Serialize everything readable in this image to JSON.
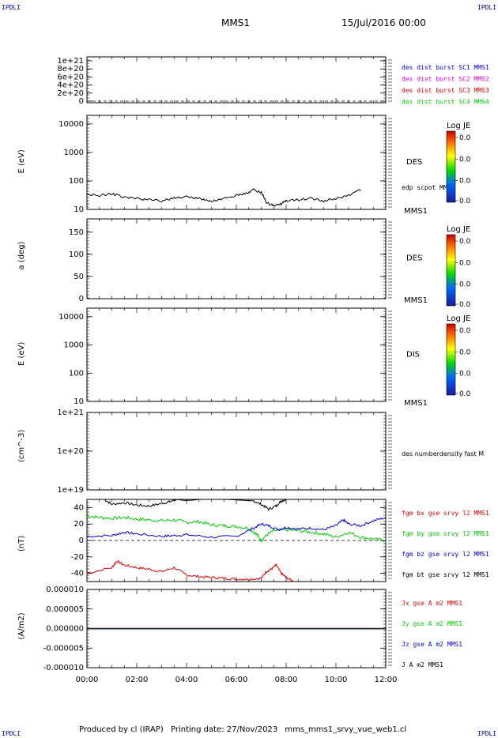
{
  "header": {
    "corner_tl": "IPDLI",
    "corner_tr": "IPDLI",
    "corner_bl": "IPDLI",
    "corner_br": "IPDLI",
    "title": "MMS1",
    "date": "15/Jul/2016 00:00"
  },
  "footer": {
    "produced_by": "Produced by cl (IRAP)",
    "printing_date": "Printing date: 27/Nov/2023",
    "filename": "mms_mms1_srvy_vue_web1.cl"
  },
  "colors": {
    "red": "#dd0000",
    "green": "#00cc00",
    "blue": "#0000dd",
    "magenta": "#dd00dd",
    "black": "#000000"
  },
  "chart_data": [
    {
      "type": "line",
      "panel": "burst",
      "ylabel": "",
      "ylim": [
        0,
        1e+21
      ],
      "yticks": [
        "1e+21",
        "8e+20",
        "6e+20",
        "4e+20",
        "2e+20",
        "0"
      ],
      "legend": [
        {
          "text": "des dist burst SC1 MMS1",
          "color": "#0000dd"
        },
        {
          "text": "des dist burst SC2 MMS2",
          "color": "#dd00dd"
        },
        {
          "text": "des dist burst SC3 MMS3",
          "color": "#dd0000"
        },
        {
          "text": "des dist burst SC4 MMS4",
          "color": "#00cc00"
        }
      ],
      "zero_line": true
    },
    {
      "type": "heatmap",
      "panel": "des-energy",
      "ylabel": "E (eV)",
      "yscale": "log",
      "ylim": [
        10,
        20000
      ],
      "yticks": [
        "10000",
        "1000",
        "100",
        "10"
      ],
      "right_label": "DES",
      "overlay_label": "edp scpot MMS1",
      "sc_label": "MMS1",
      "colorbar": {
        "title": "Log JE",
        "ticks": [
          "0.0",
          "0.0",
          "0.0",
          "0.0"
        ]
      },
      "overlay_series": {
        "name": "edp scpot MMS1",
        "x_hours": [
          0,
          0.5,
          1,
          1.5,
          2,
          2.5,
          3,
          3.5,
          4,
          4.5,
          5,
          5.5,
          6,
          6.4,
          6.7,
          7,
          7.2,
          7.5,
          7.8,
          8,
          8.5,
          9,
          9.5,
          10,
          10.5,
          11
        ],
        "values": [
          30,
          28,
          32,
          24,
          22,
          20,
          18,
          23,
          25,
          22,
          18,
          21,
          28,
          33,
          45,
          35,
          16,
          12,
          14,
          18,
          20,
          22,
          18,
          22,
          28,
          45
        ]
      }
    },
    {
      "type": "heatmap",
      "panel": "des-pitch",
      "ylabel": "a (deg)",
      "ylim": [
        0,
        180
      ],
      "yticks": [
        "150",
        "100",
        "50",
        "0"
      ],
      "right_label": "DES",
      "sc_label": "MMS1",
      "colorbar": {
        "title": "Log JE",
        "ticks": [
          "0.0",
          "0.0",
          "0.0",
          "0.0"
        ]
      }
    },
    {
      "type": "heatmap",
      "panel": "dis-energy",
      "ylabel": "E (eV)",
      "yscale": "log",
      "ylim": [
        10,
        20000
      ],
      "yticks": [
        "10000",
        "1000",
        "100",
        "10"
      ],
      "right_label": "DIS",
      "sc_label": "MMS1",
      "colorbar": {
        "title": "Log JE",
        "ticks": [
          "0.0",
          "0.0",
          "0.0",
          "0.0"
        ]
      }
    },
    {
      "type": "line",
      "panel": "density",
      "ylabel": "(cm^-3)",
      "yscale": "log",
      "ylim": [
        1e+19,
        1e+21
      ],
      "yticks": [
        "1e+21",
        "1e+20",
        "1e+19"
      ],
      "right_label": "des numberdensity fast M"
    },
    {
      "type": "line",
      "panel": "bfield",
      "ylabel": "(nT)",
      "ylim": [
        -50,
        50
      ],
      "yticks": [
        "40",
        "20",
        "0",
        "-20",
        "-40"
      ],
      "zero_line": true,
      "series": [
        {
          "name": "fgm bx gse srvy l2 MMS1",
          "color": "#dd0000",
          "x_hours": [
            0,
            1,
            1.2,
            1.5,
            2,
            2.5,
            3,
            3.5,
            4,
            4.5,
            5,
            5.5,
            6,
            6.5,
            7,
            7.2,
            7.4,
            7.6,
            7.8,
            8,
            8.3
          ],
          "values": [
            -40,
            -33,
            -25,
            -30,
            -33,
            -35,
            -38,
            -33,
            -42,
            -44,
            -45,
            -46,
            -47,
            -47,
            -46,
            -38,
            -35,
            -30,
            -40,
            -45,
            -50
          ]
        },
        {
          "name": "fgm by gse srvy l2 MMS1",
          "color": "#00cc00",
          "x_hours": [
            0,
            0.5,
            1,
            1.5,
            2,
            2.5,
            3,
            3.5,
            4,
            4.5,
            5,
            5.5,
            6,
            6.5,
            6.8,
            7,
            7.2,
            7.5,
            8,
            8.5,
            9,
            9.5,
            10,
            10.5,
            11,
            11.5,
            12
          ],
          "values": [
            30,
            28,
            27,
            28,
            26,
            25,
            24,
            25,
            22,
            23,
            19,
            18,
            17,
            15,
            8,
            0,
            6,
            12,
            13,
            12,
            10,
            8,
            4,
            10,
            4,
            2,
            0
          ]
        },
        {
          "name": "fgm bz gse srvy l2 MMS1",
          "color": "#0000dd",
          "x_hours": [
            0,
            1,
            1.5,
            2,
            3,
            3.5,
            4,
            5,
            6,
            6.7,
            7,
            7.3,
            7.7,
            8,
            8.5,
            9,
            9.5,
            10,
            10.3,
            10.5,
            11,
            11.5,
            12
          ],
          "values": [
            5,
            6,
            10,
            8,
            5,
            6,
            7,
            4,
            5,
            15,
            20,
            18,
            13,
            16,
            14,
            15,
            13,
            18,
            25,
            20,
            18,
            24,
            28
          ]
        },
        {
          "name": "fgm bt gse srvy l2 MMS1",
          "color": "#000000",
          "x_hours": [
            0.7,
            1,
            1.5,
            2,
            2.5,
            3,
            3.3,
            3.6,
            6.7,
            7,
            7.3,
            7.6,
            7.8,
            8
          ],
          "values": [
            50,
            44,
            46,
            43,
            42,
            45,
            47,
            50,
            48,
            44,
            38,
            42,
            48,
            50
          ]
        }
      ]
    },
    {
      "type": "line",
      "panel": "current",
      "ylabel": "(A/m2)",
      "ylim": [
        -1e-05,
        1e-05
      ],
      "yticks": [
        "0.000010",
        "0.000005",
        "0.000000",
        "-0.000005",
        "-0.000010"
      ],
      "xticks": [
        "00:00",
        "02:00",
        "04:00",
        "06:00",
        "08:00",
        "10:00",
        "12:00"
      ],
      "series": [
        {
          "name": "Jx gse A m2 MMS1",
          "color": "#dd0000"
        },
        {
          "name": "Jy gse A m2 MMS1",
          "color": "#00cc00"
        },
        {
          "name": "Jz gse A m2 MMS1",
          "color": "#0000dd"
        },
        {
          "name": "J A m2 MMS1",
          "color": "#000000"
        }
      ]
    }
  ]
}
